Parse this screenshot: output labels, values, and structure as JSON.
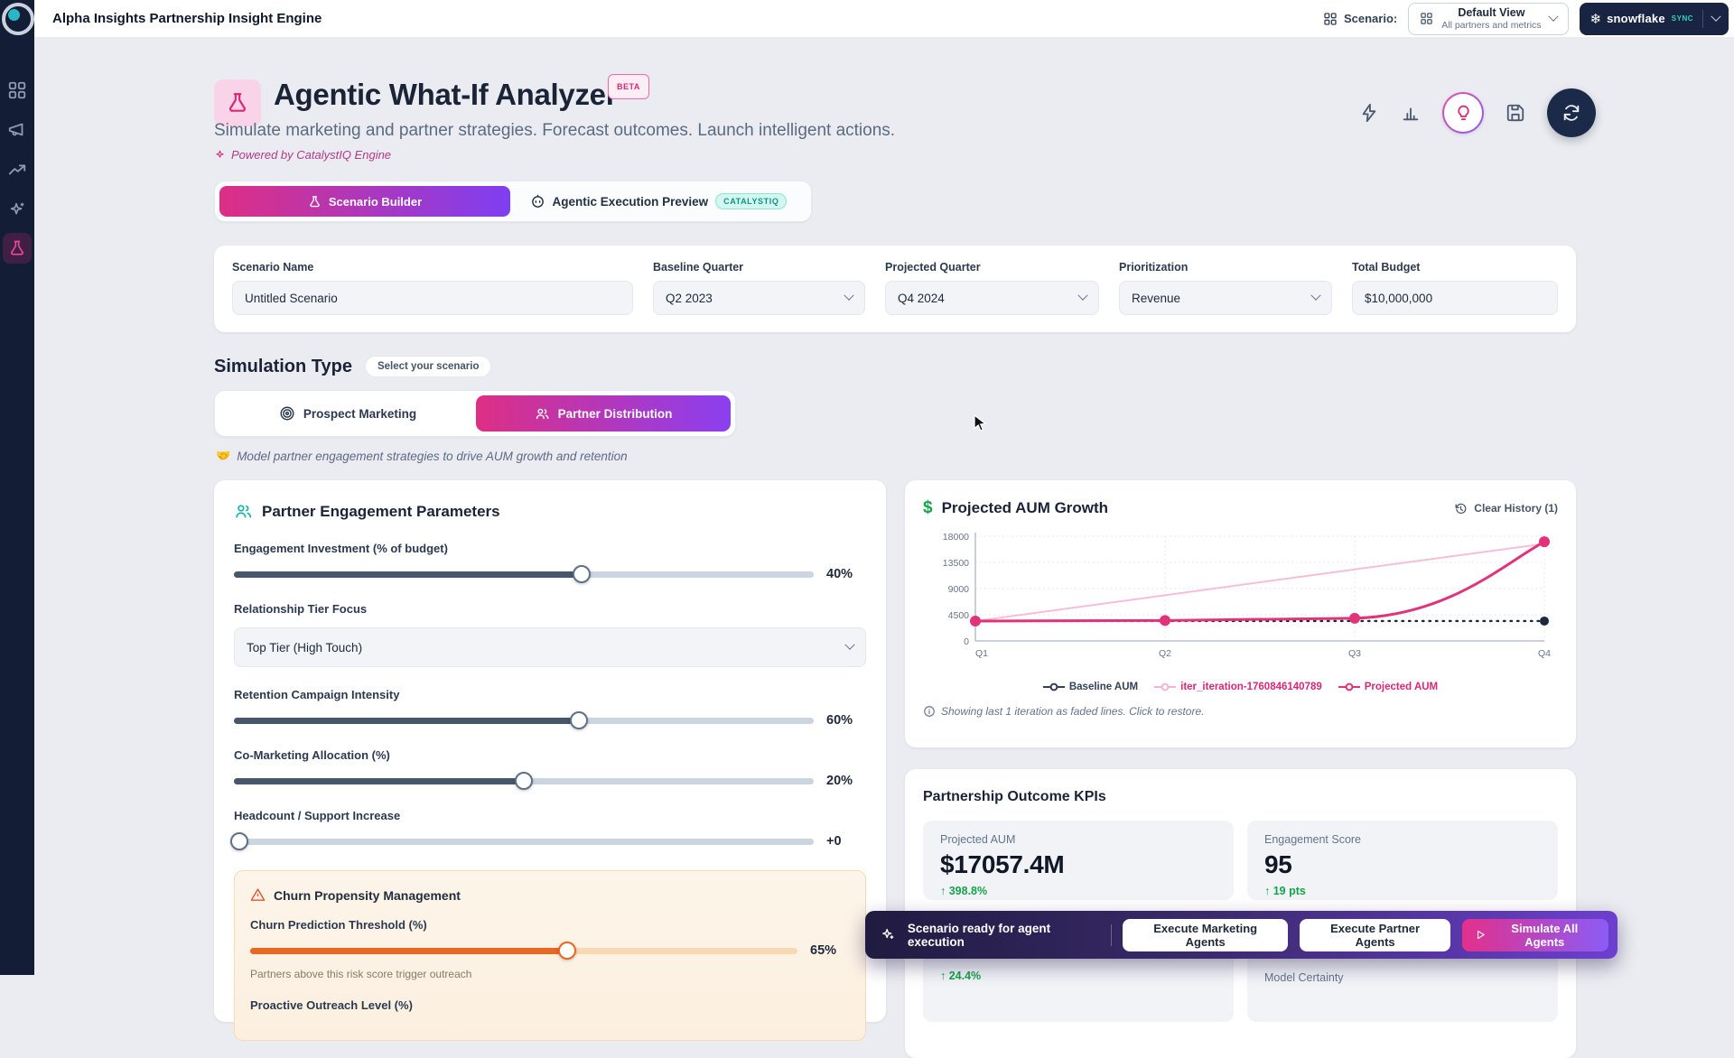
{
  "topbar": {
    "title": "Alpha Insights Partnership Insight Engine",
    "scenario_label": "Scenario:",
    "view": {
      "title": "Default View",
      "subtitle": "All partners and metrics"
    },
    "snowflake": {
      "brand": "snowflake",
      "mode": "SYNC"
    }
  },
  "header": {
    "title": "Agentic What-If Analyzer",
    "beta": "BETA",
    "subtitle": "Simulate marketing and partner strategies. Forecast outcomes. Launch intelligent actions.",
    "powered": "Powered by CatalystIQ Engine"
  },
  "tabs": {
    "builder": "Scenario Builder",
    "preview": "Agentic Execution Preview",
    "preview_badge": "CATALYSTIQ"
  },
  "form": {
    "scenario_name": {
      "label": "Scenario Name",
      "value": "Untitled Scenario"
    },
    "baseline_quarter": {
      "label": "Baseline Quarter",
      "value": "Q2 2023"
    },
    "projected_quarter": {
      "label": "Projected Quarter",
      "value": "Q4 2024"
    },
    "prioritization": {
      "label": "Prioritization",
      "value": "Revenue"
    },
    "total_budget": {
      "label": "Total Budget",
      "value": "$10,000,000"
    }
  },
  "simulation": {
    "heading": "Simulation Type",
    "pill": "Select your scenario",
    "option_marketing": "Prospect Marketing",
    "option_partner": "Partner Distribution",
    "hint_icon": "🤝",
    "hint": "Model partner engagement strategies to drive AUM growth and retention"
  },
  "params": {
    "title": "Partner Engagement Parameters",
    "sliders": [
      {
        "label": "Engagement Investment (% of budget)",
        "value": "40%",
        "fill": 60
      },
      {
        "label": "Retention Campaign Intensity",
        "value": "60%",
        "fill": 59.5
      },
      {
        "label": "Co-Marketing Allocation (%)",
        "value": "20%",
        "fill": 50
      },
      {
        "label": "Headcount / Support Increase",
        "value": "+0",
        "fill": 1
      },
      {
        "label": "Churn Prediction Threshold (%)",
        "value": "65%",
        "fill": 58
      }
    ],
    "tier": {
      "label": "Relationship Tier Focus",
      "value": "Top Tier (High Touch)"
    },
    "churn": {
      "title": "Churn Propensity Management",
      "threshold_sub": "Partners above this risk score trigger outreach",
      "outreach_label": "Proactive Outreach Level (%)"
    }
  },
  "chart_card": {
    "title": "Projected AUM Growth",
    "clear_history": "Clear History (1)",
    "note": "Showing last 1 iteration as faded lines. Click to restore."
  },
  "chart_data": {
    "type": "line",
    "title": "Projected AUM Growth",
    "x": [
      "Q1",
      "Q2",
      "Q3",
      "Q4"
    ],
    "y_ticks": [
      0,
      4500,
      9000,
      13500,
      18000
    ],
    "ylim": [
      0,
      18000
    ],
    "grid": true,
    "legend_position": "bottom",
    "series": [
      {
        "name": "Baseline AUM",
        "values": [
          3420,
          3420,
          3420,
          3420
        ],
        "color": "#1e293b",
        "legend_color": "#334155",
        "style": "dashed"
      },
      {
        "name": "iter_iteration-1760846140789",
        "values": [
          3420,
          7850,
          12300,
          16700
        ],
        "color": "#f6b3d0",
        "legend_color": "#db2777",
        "style": "faded"
      },
      {
        "name": "Projected AUM",
        "values": [
          3420,
          3520,
          3900,
          17057.4
        ],
        "color": "#e2337a",
        "legend_color": "#db2777",
        "style": "curve"
      }
    ]
  },
  "kpis": {
    "heading": "Partnership Outcome KPIs",
    "cards": [
      {
        "label": "Projected AUM",
        "value": "$17057.4M",
        "delta": "↑ 398.8%"
      },
      {
        "label": "Engagement Score",
        "value": "95",
        "delta": "↑ 19 pts"
      },
      {
        "delta": "↑ 24.4%"
      },
      {
        "label": "Model Certainty"
      }
    ]
  },
  "toast": {
    "message": "Scenario ready for agent execution",
    "buttons": [
      "Execute Marketing Agents",
      "Execute Partner Agents"
    ],
    "primary": "Simulate All Agents"
  }
}
